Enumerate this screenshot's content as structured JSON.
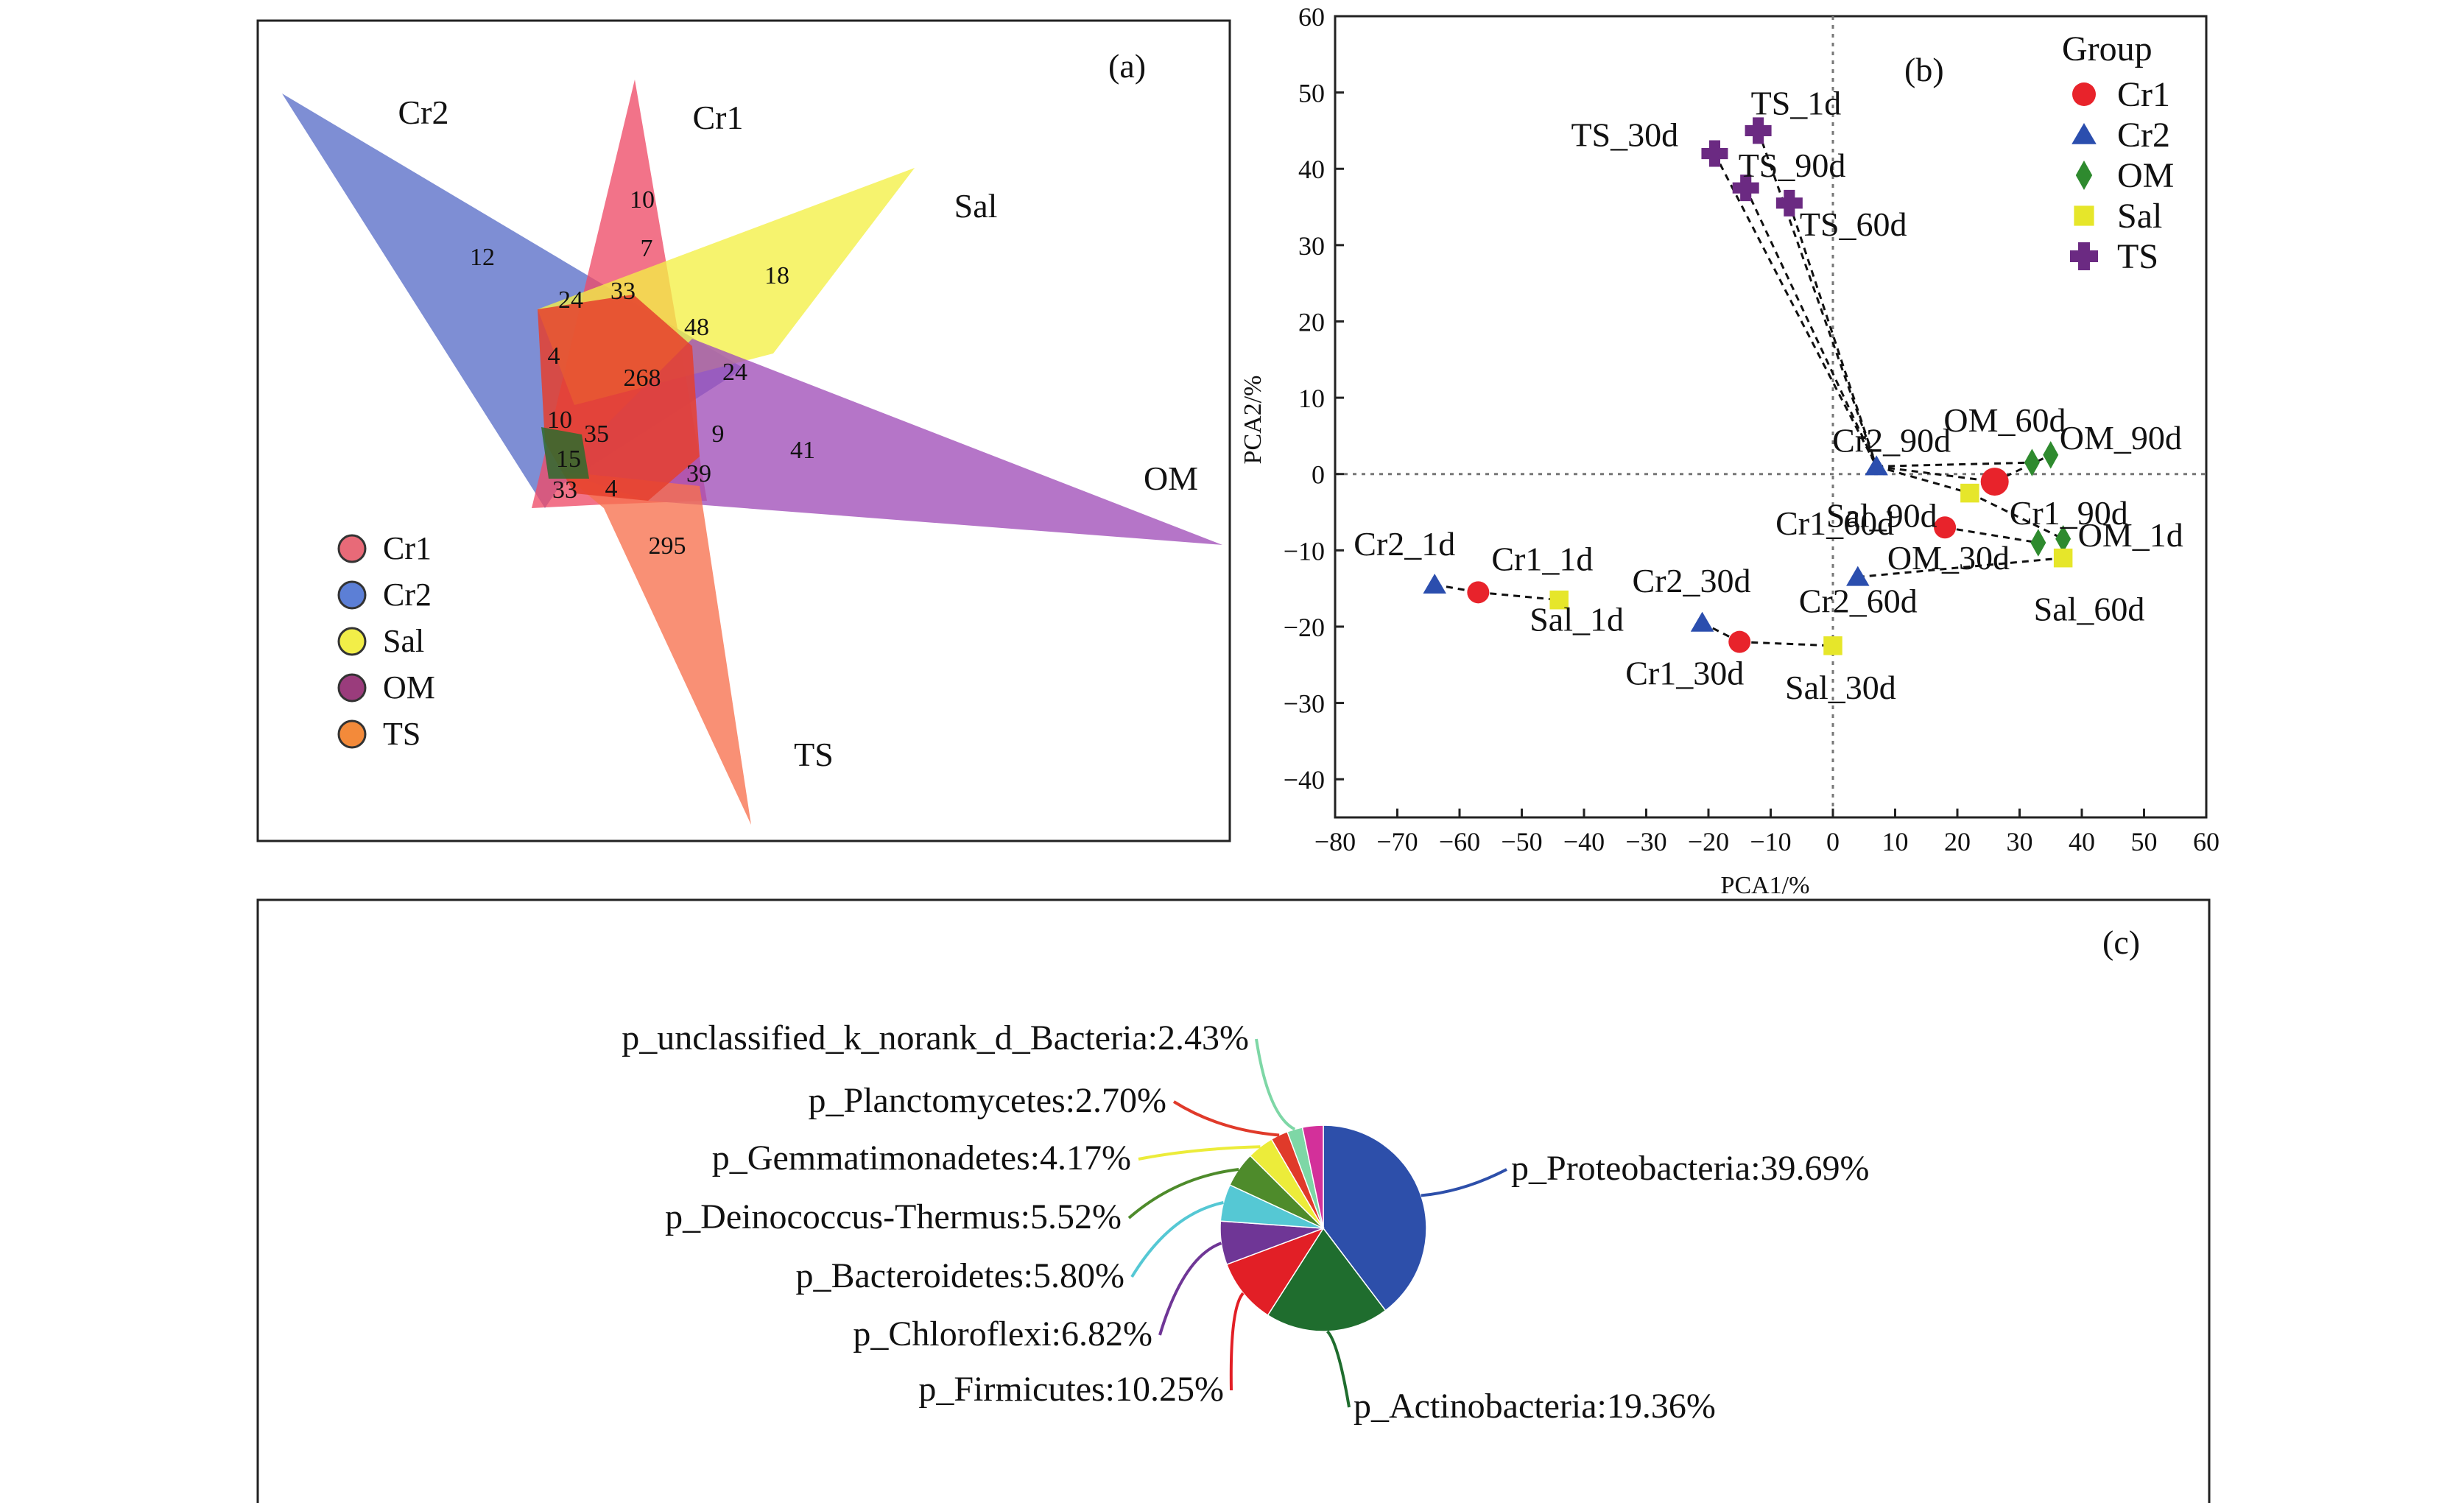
{
  "chart_data": [
    {
      "type": "venn",
      "panel_label": "(a)",
      "sets": [
        {
          "name": "Cr2",
          "color": "#5a6ec8"
        },
        {
          "name": "Cr1",
          "color": "#ee4c68"
        },
        {
          "name": "Sal",
          "color": "#f4f045"
        },
        {
          "name": "OM",
          "color": "#a04eb8"
        },
        {
          "name": "TS",
          "color": "#f7714e"
        }
      ],
      "legend": [
        {
          "label": "Cr1",
          "color": "#e86a78"
        },
        {
          "label": "Cr2",
          "color": "#5c7fd6"
        },
        {
          "label": "Sal",
          "color": "#f2ee48"
        },
        {
          "label": "OM",
          "color": "#9a3c7c"
        },
        {
          "label": "TS",
          "color": "#f38a3a"
        }
      ],
      "counts": [
        {
          "value": "12",
          "region": "Cr2 only"
        },
        {
          "value": "10",
          "region": "Cr1 only"
        },
        {
          "value": "18",
          "region": "Sal only"
        },
        {
          "value": "41",
          "region": "OM only"
        },
        {
          "value": "295",
          "region": "TS only"
        },
        {
          "value": "7"
        },
        {
          "value": "24"
        },
        {
          "value": "33"
        },
        {
          "value": "48"
        },
        {
          "value": "4"
        },
        {
          "value": "268",
          "region": "all"
        },
        {
          "value": "24"
        },
        {
          "value": "10"
        },
        {
          "value": "35"
        },
        {
          "value": "9"
        },
        {
          "value": "15"
        },
        {
          "value": "39"
        },
        {
          "value": "33"
        },
        {
          "value": "4"
        }
      ]
    },
    {
      "type": "scatter",
      "panel_label": "(b)",
      "xlabel": "PCA1/%",
      "ylabel": "PCA2/%",
      "xlim": [
        -80,
        60
      ],
      "ylim": [
        -45,
        60
      ],
      "xticks": [
        -80,
        -70,
        -60,
        -50,
        -40,
        -30,
        -20,
        -10,
        0,
        10,
        20,
        30,
        40,
        50,
        60
      ],
      "yticks": [
        -40,
        -30,
        -20,
        -10,
        0,
        10,
        20,
        30,
        40,
        50,
        60
      ],
      "legend_title": "Group",
      "legend_position": "top-right",
      "series": [
        {
          "name": "Cr1",
          "color": "#e8232b",
          "marker": "circle",
          "points": [
            {
              "label": "Cr1_1d",
              "x": -57,
              "y": -15.5
            },
            {
              "label": "Cr1_30d",
              "x": -15,
              "y": -22
            },
            {
              "label": "Cr1_60d",
              "x": 18,
              "y": -7
            },
            {
              "label": "Cr1_90d",
              "x": 26,
              "y": -1
            }
          ]
        },
        {
          "name": "Cr2",
          "color": "#2b4eae",
          "marker": "triangle",
          "points": [
            {
              "label": "Cr2_1d",
              "x": -64,
              "y": -14.5
            },
            {
              "label": "Cr2_30d",
              "x": -21,
              "y": -19.5
            },
            {
              "label": "Cr2_60d",
              "x": 4,
              "y": -13.5
            },
            {
              "label": "Cr2_90d",
              "x": 7,
              "y": 1
            }
          ]
        },
        {
          "name": "OM",
          "color": "#2e8a2e",
          "marker": "diamond",
          "points": [
            {
              "label": "OM_1d",
              "x": 37,
              "y": -8.5
            },
            {
              "label": "OM_30d",
              "x": 33,
              "y": -9
            },
            {
              "label": "OM_60d",
              "x": 32,
              "y": 1.5
            },
            {
              "label": "OM_90d",
              "x": 35,
              "y": 2.5
            }
          ]
        },
        {
          "name": "Sal",
          "color": "#e6e62a",
          "marker": "square",
          "points": [
            {
              "label": "Sal_1d",
              "x": -44,
              "y": -16.5
            },
            {
              "label": "Sal_30d",
              "x": 0,
              "y": -22.5
            },
            {
              "label": "Sal_60d",
              "x": 37,
              "y": -11
            },
            {
              "label": "Sal_90d",
              "x": 22,
              "y": -2.5
            }
          ]
        },
        {
          "name": "TS",
          "color": "#6b2a82",
          "marker": "cross",
          "points": [
            {
              "label": "TS_1d",
              "x": -12,
              "y": 45
            },
            {
              "label": "TS_30d",
              "x": -19,
              "y": 42
            },
            {
              "label": "TS_60d",
              "x": -7,
              "y": 35.5
            },
            {
              "label": "TS_90d",
              "x": -14,
              "y": 37.5
            }
          ]
        }
      ]
    },
    {
      "type": "pie",
      "panel_label": "(c)",
      "slices": [
        {
          "label": "p_Proteobacteria:39.69%",
          "value": 39.69,
          "color": "#2d4faa"
        },
        {
          "label": "p_Actinobacteria:19.36%",
          "value": 19.36,
          "color": "#1f6d2e"
        },
        {
          "label": "p_Firmicutes:10.25%",
          "value": 10.25,
          "color": "#e21f26"
        },
        {
          "label": "p_Chloroflexi:6.82%",
          "value": 6.82,
          "color": "#6f3696"
        },
        {
          "label": "p_Bacteroidetes:5.80%",
          "value": 5.8,
          "color": "#55c8d4"
        },
        {
          "label": "p_Deinococcus-Thermus:5.52%",
          "value": 5.52,
          "color": "#4e8b2b"
        },
        {
          "label": "p_Gemmatimonadetes:4.17%",
          "value": 4.17,
          "color": "#ecec3a"
        },
        {
          "label": "p_Planctomycetes:2.70%",
          "value": 2.7,
          "color": "#e03a2a"
        },
        {
          "label": "p_unclassified_k_norank_d_Bacteria:2.43%",
          "value": 2.43,
          "color": "#7ed7a6"
        },
        {
          "label": "",
          "value": 3.26,
          "color": "#d3309a"
        }
      ]
    }
  ]
}
